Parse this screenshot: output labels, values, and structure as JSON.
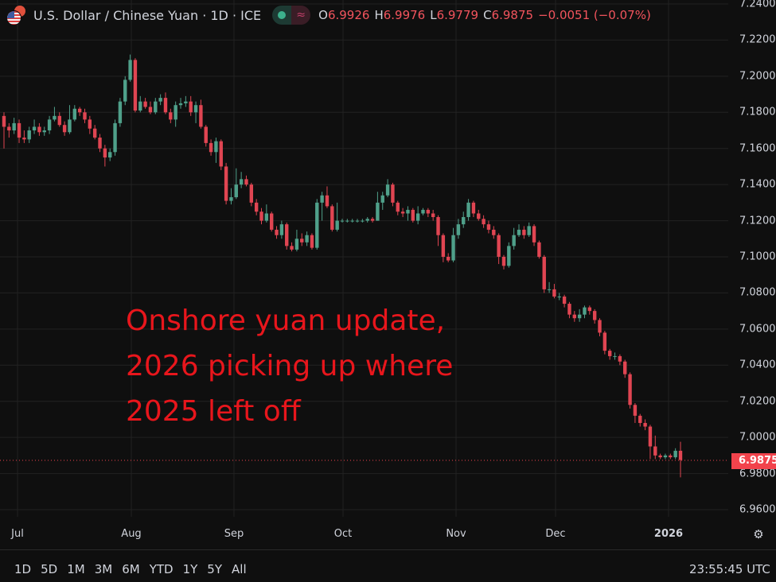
{
  "header": {
    "symbol_title": "U.S. Dollar / Chinese Yuan · 1D · ICE",
    "flag_icon": "usd-cny-flag-icon",
    "market_status_icon": "market-open-dot-icon",
    "indicator_icon": "approx-icon",
    "ohlc": {
      "o_label": "O",
      "o": "6.9926",
      "h_label": "H",
      "h": "6.9976",
      "l_label": "L",
      "l": "6.9779",
      "c_label": "C",
      "c": "6.9875"
    },
    "change": "−0.0051 (−0.07%)"
  },
  "annotation": {
    "lines": [
      "Onshore yuan update,",
      "2026 picking up where",
      "2025 left off"
    ],
    "color": "#e8161c"
  },
  "current_price_label": "6.9875",
  "bottom_bar": {
    "ranges": [
      "1D",
      "5D",
      "1M",
      "3M",
      "6M",
      "YTD",
      "1Y",
      "5Y",
      "All"
    ],
    "clock": "23:55:45 UTC"
  },
  "colors": {
    "background": "#0f0f0f",
    "up": "#4fa08a",
    "down": "#e04552",
    "grid": "#222222"
  },
  "chart_data": {
    "type": "candlestick",
    "x_tick_labels": [
      "Jul",
      "Aug",
      "Sep",
      "Oct",
      "Nov",
      "Dec",
      "2026"
    ],
    "y_tick_labels": [
      "7.2400",
      "7.2200",
      "7.2000",
      "7.1800",
      "7.1600",
      "7.1400",
      "7.1200",
      "7.1000",
      "7.0800",
      "7.0600",
      "7.0400",
      "7.0200",
      "7.0000",
      "6.9800",
      "6.9600"
    ],
    "ylim": [
      6.96,
      7.24
    ],
    "grid": true,
    "last_price": 6.9875,
    "candles_ohlc": [
      [
        7.178,
        7.18,
        7.16,
        7.172
      ],
      [
        7.172,
        7.174,
        7.166,
        7.17
      ],
      [
        7.17,
        7.177,
        7.168,
        7.174
      ],
      [
        7.174,
        7.176,
        7.163,
        7.166
      ],
      [
        7.166,
        7.17,
        7.163,
        7.165
      ],
      [
        7.165,
        7.172,
        7.163,
        7.17
      ],
      [
        7.17,
        7.176,
        7.168,
        7.172
      ],
      [
        7.172,
        7.174,
        7.167,
        7.169
      ],
      [
        7.169,
        7.172,
        7.167,
        7.17
      ],
      [
        7.17,
        7.178,
        7.168,
        7.176
      ],
      [
        7.176,
        7.183,
        7.175,
        7.178
      ],
      [
        7.178,
        7.18,
        7.172,
        7.173
      ],
      [
        7.173,
        7.175,
        7.167,
        7.169
      ],
      [
        7.169,
        7.184,
        7.168,
        7.176
      ],
      [
        7.176,
        7.184,
        7.175,
        7.182
      ],
      [
        7.182,
        7.183,
        7.178,
        7.18
      ],
      [
        7.18,
        7.182,
        7.174,
        7.176
      ],
      [
        7.176,
        7.178,
        7.168,
        7.171
      ],
      [
        7.171,
        7.173,
        7.165,
        7.166
      ],
      [
        7.166,
        7.168,
        7.158,
        7.16
      ],
      [
        7.16,
        7.162,
        7.15,
        7.155
      ],
      [
        7.155,
        7.16,
        7.153,
        7.158
      ],
      [
        7.158,
        7.176,
        7.156,
        7.174
      ],
      [
        7.174,
        7.188,
        7.172,
        7.186
      ],
      [
        7.186,
        7.2,
        7.184,
        7.198
      ],
      [
        7.198,
        7.212,
        7.197,
        7.209
      ],
      [
        7.209,
        7.21,
        7.18,
        7.181
      ],
      [
        7.181,
        7.189,
        7.18,
        7.186
      ],
      [
        7.186,
        7.188,
        7.182,
        7.183
      ],
      [
        7.183,
        7.186,
        7.179,
        7.18
      ],
      [
        7.18,
        7.188,
        7.179,
        7.186
      ],
      [
        7.186,
        7.19,
        7.184,
        7.188
      ],
      [
        7.188,
        7.191,
        7.179,
        7.18
      ],
      [
        7.18,
        7.182,
        7.174,
        7.176
      ],
      [
        7.176,
        7.186,
        7.172,
        7.184
      ],
      [
        7.184,
        7.188,
        7.182,
        7.185
      ],
      [
        7.185,
        7.189,
        7.183,
        7.186
      ],
      [
        7.186,
        7.189,
        7.178,
        7.18
      ],
      [
        7.18,
        7.186,
        7.174,
        7.184
      ],
      [
        7.184,
        7.187,
        7.171,
        7.172
      ],
      [
        7.172,
        7.173,
        7.161,
        7.163
      ],
      [
        7.163,
        7.165,
        7.156,
        7.158
      ],
      [
        7.158,
        7.166,
        7.152,
        7.164
      ],
      [
        7.164,
        7.165,
        7.148,
        7.15
      ],
      [
        7.15,
        7.152,
        7.129,
        7.131
      ],
      [
        7.131,
        7.138,
        7.129,
        7.133
      ],
      [
        7.133,
        7.149,
        7.132,
        7.14
      ],
      [
        7.14,
        7.147,
        7.138,
        7.143
      ],
      [
        7.143,
        7.145,
        7.139,
        7.14
      ],
      [
        7.14,
        7.141,
        7.128,
        7.13
      ],
      [
        7.13,
        7.132,
        7.123,
        7.125
      ],
      [
        7.125,
        7.127,
        7.118,
        7.12
      ],
      [
        7.12,
        7.129,
        7.119,
        7.124
      ],
      [
        7.124,
        7.125,
        7.114,
        7.115
      ],
      [
        7.115,
        7.117,
        7.11,
        7.112
      ],
      [
        7.112,
        7.12,
        7.11,
        7.118
      ],
      [
        7.118,
        7.119,
        7.104,
        7.106
      ],
      [
        7.106,
        7.108,
        7.103,
        7.104
      ],
      [
        7.104,
        7.115,
        7.103,
        7.11
      ],
      [
        7.11,
        7.113,
        7.106,
        7.108
      ],
      [
        7.108,
        7.114,
        7.106,
        7.112
      ],
      [
        7.112,
        7.113,
        7.104,
        7.105
      ],
      [
        7.105,
        7.132,
        7.104,
        7.13
      ],
      [
        7.13,
        7.136,
        7.12,
        7.134
      ],
      [
        7.134,
        7.139,
        7.127,
        7.128
      ],
      [
        7.128,
        7.129,
        7.114,
        7.115
      ],
      [
        7.115,
        7.13,
        7.114,
        7.12
      ],
      [
        7.12,
        7.121,
        7.119,
        7.12
      ],
      [
        7.12,
        7.121,
        7.119,
        7.12
      ],
      [
        7.12,
        7.121,
        7.119,
        7.12
      ],
      [
        7.12,
        7.121,
        7.119,
        7.12
      ],
      [
        7.12,
        7.121,
        7.119,
        7.12
      ],
      [
        7.12,
        7.122,
        7.119,
        7.121
      ],
      [
        7.121,
        7.122,
        7.119,
        7.12
      ],
      [
        7.12,
        7.136,
        7.12,
        7.13
      ],
      [
        7.13,
        7.136,
        7.126,
        7.134
      ],
      [
        7.134,
        7.143,
        7.133,
        7.14
      ],
      [
        7.14,
        7.141,
        7.128,
        7.13
      ],
      [
        7.13,
        7.131,
        7.123,
        7.125
      ],
      [
        7.125,
        7.127,
        7.122,
        7.124
      ],
      [
        7.124,
        7.128,
        7.12,
        7.126
      ],
      [
        7.126,
        7.127,
        7.119,
        7.12
      ],
      [
        7.12,
        7.128,
        7.118,
        7.124
      ],
      [
        7.124,
        7.127,
        7.123,
        7.126
      ],
      [
        7.126,
        7.127,
        7.122,
        7.124
      ],
      [
        7.124,
        7.126,
        7.12,
        7.122
      ],
      [
        7.122,
        7.123,
        7.106,
        7.112
      ],
      [
        7.112,
        7.113,
        7.097,
        7.1
      ],
      [
        7.1,
        7.102,
        7.097,
        7.098
      ],
      [
        7.098,
        7.116,
        7.097,
        7.112
      ],
      [
        7.112,
        7.121,
        7.11,
        7.118
      ],
      [
        7.118,
        7.125,
        7.116,
        7.122
      ],
      [
        7.122,
        7.132,
        7.12,
        7.13
      ],
      [
        7.13,
        7.131,
        7.122,
        7.124
      ],
      [
        7.124,
        7.126,
        7.12,
        7.121
      ],
      [
        7.121,
        7.123,
        7.116,
        7.118
      ],
      [
        7.118,
        7.12,
        7.113,
        7.115
      ],
      [
        7.115,
        7.117,
        7.11,
        7.112
      ],
      [
        7.112,
        7.113,
        7.096,
        7.1
      ],
      [
        7.1,
        7.101,
        7.093,
        7.095
      ],
      [
        7.095,
        7.108,
        7.094,
        7.106
      ],
      [
        7.106,
        7.116,
        7.104,
        7.112
      ],
      [
        7.112,
        7.118,
        7.111,
        7.115
      ],
      [
        7.115,
        7.117,
        7.11,
        7.112
      ],
      [
        7.112,
        7.119,
        7.111,
        7.117
      ],
      [
        7.117,
        7.118,
        7.106,
        7.108
      ],
      [
        7.108,
        7.109,
        7.099,
        7.1
      ],
      [
        7.1,
        7.101,
        7.08,
        7.082
      ],
      [
        7.082,
        7.086,
        7.08,
        7.082
      ],
      [
        7.082,
        7.085,
        7.077,
        7.078
      ],
      [
        7.078,
        7.08,
        7.076,
        7.078
      ],
      [
        7.078,
        7.079,
        7.072,
        7.074
      ],
      [
        7.074,
        7.075,
        7.066,
        7.068
      ],
      [
        7.068,
        7.07,
        7.064,
        7.066
      ],
      [
        7.066,
        7.071,
        7.064,
        7.068
      ],
      [
        7.068,
        7.073,
        7.066,
        7.072
      ],
      [
        7.072,
        7.073,
        7.068,
        7.07
      ],
      [
        7.07,
        7.071,
        7.063,
        7.065
      ],
      [
        7.065,
        7.066,
        7.056,
        7.058
      ],
      [
        7.058,
        7.059,
        7.046,
        7.048
      ],
      [
        7.048,
        7.049,
        7.043,
        7.045
      ],
      [
        7.045,
        7.047,
        7.043,
        7.045
      ],
      [
        7.045,
        7.046,
        7.04,
        7.042
      ],
      [
        7.042,
        7.043,
        7.033,
        7.035
      ],
      [
        7.035,
        7.036,
        7.016,
        7.018
      ],
      [
        7.018,
        7.019,
        7.008,
        7.012
      ],
      [
        7.012,
        7.013,
        7.006,
        7.008
      ],
      [
        7.008,
        7.01,
        7.004,
        7.006
      ],
      [
        7.006,
        7.007,
        6.988,
        6.995
      ],
      [
        6.995,
        7.001,
        6.988,
        6.99
      ],
      [
        6.99,
        6.991,
        6.988,
        6.989
      ],
      [
        6.989,
        6.991,
        6.988,
        6.99
      ],
      [
        6.99,
        6.991,
        6.988,
        6.989
      ],
      [
        6.989,
        6.994,
        6.988,
        6.9926
      ],
      [
        6.9926,
        6.9976,
        6.9779,
        6.9875
      ]
    ]
  }
}
